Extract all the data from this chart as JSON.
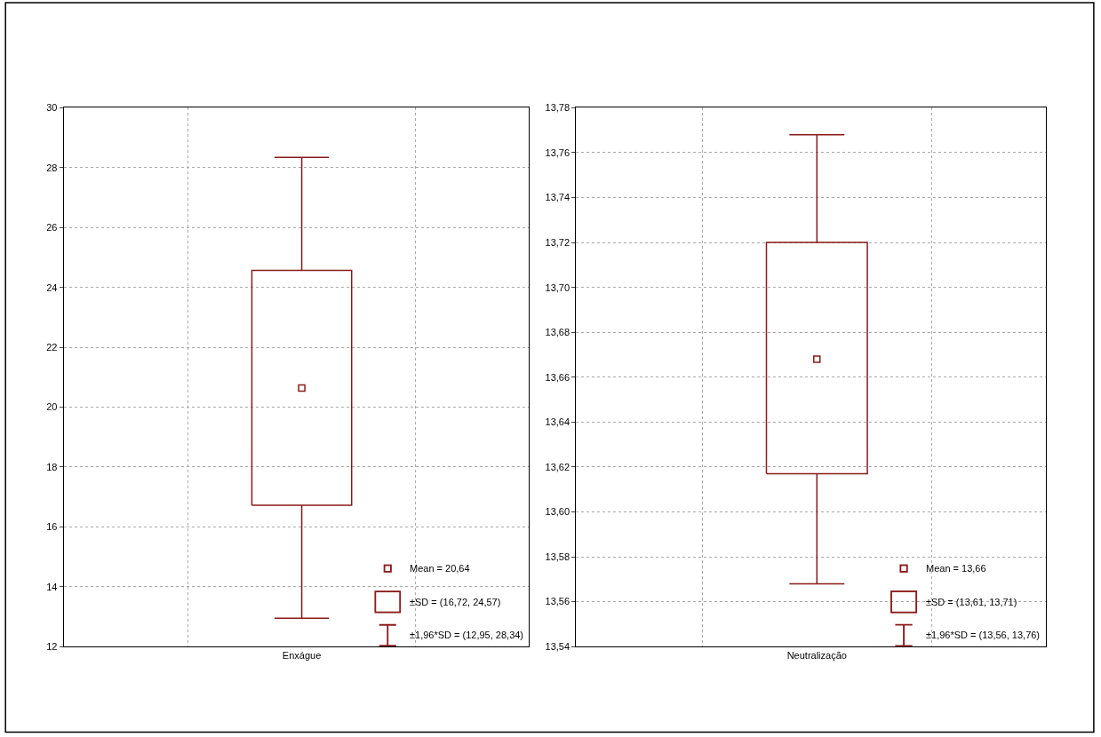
{
  "chart_data": [
    {
      "type": "box",
      "categories": [
        "Enxágue"
      ],
      "color": "#8b1a1a",
      "grid": true,
      "boxes": [
        {
          "low": 12.95,
          "q1": 16.72,
          "median": 20.64,
          "q3": 24.57,
          "high": 28.34
        }
      ],
      "ylim": [
        12,
        30
      ],
      "yticks": [
        12,
        14,
        16,
        18,
        20,
        22,
        24,
        26,
        28,
        30
      ],
      "annotations": [
        "Mean = 20,64",
        "±SD = (16,72, 24,57)",
        "±1,96*SD = (12,95, 28,34)"
      ]
    },
    {
      "type": "box",
      "categories": [
        "Neutralização"
      ],
      "color": "#8b1a1a",
      "grid": true,
      "boxes": [
        {
          "low": 13.568,
          "q1": 13.617,
          "median": 13.668,
          "q3": 13.72,
          "high": 13.768
        }
      ],
      "ylim": [
        13.54,
        13.78
      ],
      "yticks": [
        {
          "value": 13.54,
          "label": "13,54"
        },
        {
          "value": 13.56,
          "label": "13,56"
        },
        {
          "value": 13.58,
          "label": "13,58"
        },
        {
          "value": 13.6,
          "label": "13,60"
        },
        {
          "value": 13.62,
          "label": "13,62"
        },
        {
          "value": 13.64,
          "label": "13,64"
        },
        {
          "value": 13.66,
          "label": "13,66"
        },
        {
          "value": 13.68,
          "label": "13,68"
        },
        {
          "value": 13.7,
          "label": "13,70"
        },
        {
          "value": 13.72,
          "label": "13,72"
        },
        {
          "value": 13.74,
          "label": "13,74"
        },
        {
          "value": 13.76,
          "label": "13,76"
        },
        {
          "value": 13.78,
          "label": "13,78"
        }
      ],
      "annotations": [
        "Mean = 13,66",
        "±SD = (13,61, 13,71)",
        "±1,96*SD = (13,56, 13,76)"
      ]
    }
  ]
}
